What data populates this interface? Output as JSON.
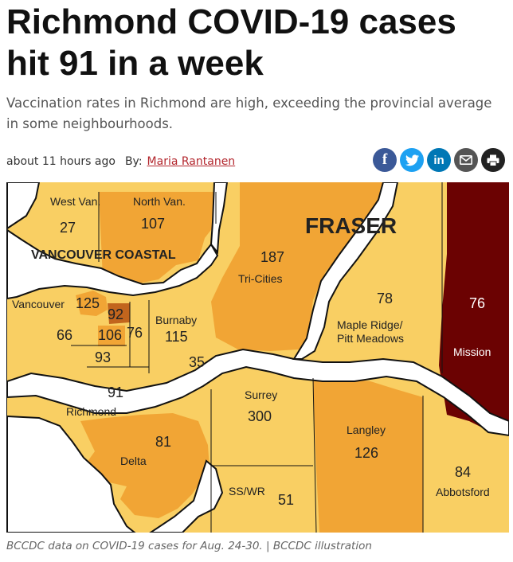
{
  "article": {
    "headline": "Richmond COVID-19 cases hit 91 in a week",
    "subtitle": "Vaccination rates in Richmond are high, exceeding the provincial average in some neighbourhoods.",
    "timestamp": "about 11 hours ago",
    "by_label": "By:",
    "author": "Maria Rantanen",
    "caption": "BCCDC data on COVID-19 cases for Aug. 24-30. | BCCDC illustration"
  },
  "share": [
    {
      "name": "facebook-icon",
      "glyph": "f",
      "color": "#3b5998"
    },
    {
      "name": "twitter-icon",
      "glyph": "t",
      "color": "#1da1f2"
    },
    {
      "name": "linkedin-icon",
      "glyph": "in",
      "color": "#0077b5"
    },
    {
      "name": "email-icon",
      "glyph": "✉",
      "color": "#555555"
    },
    {
      "name": "print-icon",
      "glyph": "⎙",
      "color": "#222222"
    }
  ],
  "map": {
    "region_labels": {
      "vancouver_coastal": "VANCOUVER COASTAL",
      "fraser": "FRASER"
    },
    "colors": {
      "light": "#f9cf63",
      "medium": "#f1a535",
      "dark": "#c2651d",
      "darkest": "#6b0202",
      "water": "#ffffff"
    },
    "areas": {
      "west_van": {
        "name": "West Van.",
        "cases": "27"
      },
      "north_van": {
        "name": "North Van.",
        "cases": "107"
      },
      "tri_cities": {
        "name": "Tri-Cities",
        "cases": "187"
      },
      "maple_ridge": {
        "name": "Maple Ridge/\nPitt Meadows",
        "cases": "78"
      },
      "mission": {
        "name": "Mission",
        "cases": "76"
      },
      "vancouver": {
        "name": "Vancouver",
        "cases": "125"
      },
      "van_a": {
        "cases": "92"
      },
      "van_b": {
        "cases": "66"
      },
      "van_c": {
        "cases": "106"
      },
      "van_d": {
        "cases": "76"
      },
      "van_e": {
        "cases": "93"
      },
      "burnaby": {
        "name": "Burnaby",
        "cases": "115"
      },
      "new_west": {
        "cases": "35"
      },
      "richmond": {
        "name": "Richmond",
        "cases": "91"
      },
      "delta": {
        "name": "Delta",
        "cases": "81"
      },
      "surrey": {
        "name": "Surrey",
        "cases": "300"
      },
      "langley": {
        "name": "Langley",
        "cases": "126"
      },
      "abbotsford": {
        "name": "Abbotsford",
        "cases": "84"
      },
      "sswr": {
        "name": "SS/WR",
        "cases": "51"
      }
    }
  }
}
